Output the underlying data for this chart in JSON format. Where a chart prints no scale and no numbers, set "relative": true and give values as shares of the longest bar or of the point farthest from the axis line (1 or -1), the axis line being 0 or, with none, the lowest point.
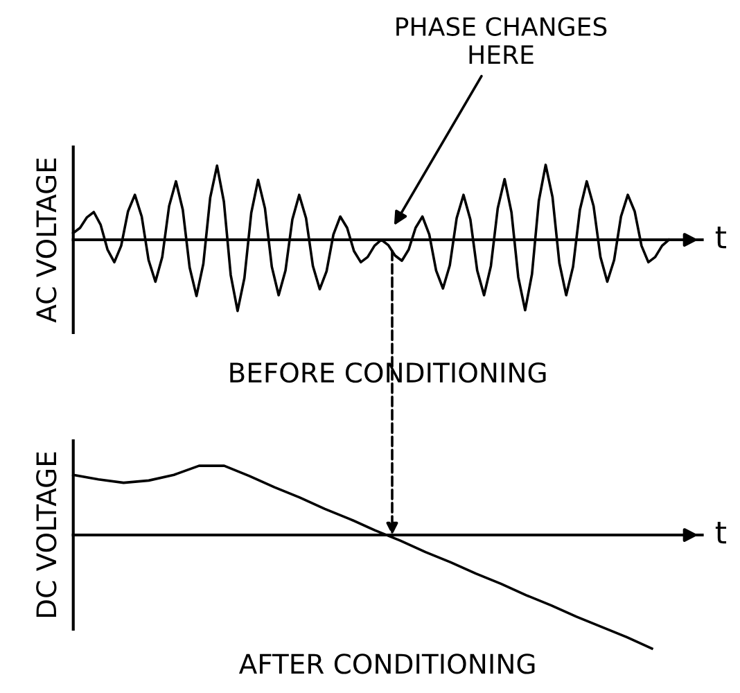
{
  "chart_data": [
    {
      "type": "line",
      "relative": true,
      "title": "BEFORE CONDITIONING",
      "xlabel": "t",
      "ylabel": "AC VOLTAGE",
      "annotations": [
        "PHASE CHANGES\nHERE"
      ],
      "categories": [
        null,
        null,
        null,
        null,
        null,
        null,
        null,
        null,
        null,
        null,
        null,
        null,
        null,
        null,
        null,
        null,
        null,
        null,
        null,
        null,
        null,
        null,
        null,
        null,
        null,
        null,
        null,
        null,
        null,
        null,
        null,
        null,
        null,
        null,
        null,
        null,
        null,
        null,
        null,
        null,
        null,
        null,
        null,
        null,
        null,
        null,
        null,
        null,
        null,
        null,
        null,
        null,
        null,
        null,
        null,
        null,
        null,
        null,
        null,
        null,
        null,
        null,
        null,
        null,
        null,
        null,
        null,
        null,
        null,
        null,
        null,
        null,
        null,
        null,
        null,
        null,
        null,
        null,
        null,
        null,
        null,
        null,
        null,
        null,
        null,
        null,
        null,
        null
      ],
      "series": [
        {
          "color": "#000000",
          "values": [
            0.09,
            0.16,
            0.3,
            0.37,
            0.2,
            -0.13,
            -0.3,
            -0.08,
            0.38,
            0.6,
            0.31,
            -0.27,
            -0.56,
            -0.23,
            0.45,
            0.78,
            0.4,
            -0.37,
            -0.75,
            -0.32,
            0.56,
            0.99,
            0.51,
            -0.47,
            -0.95,
            -0.51,
            0.36,
            0.8,
            0.42,
            -0.36,
            -0.74,
            -0.41,
            0.27,
            0.6,
            0.29,
            -0.35,
            -0.66,
            -0.42,
            0.07,
            0.31,
            0.16,
            -0.15,
            -0.3,
            -0.23,
            -0.08,
            0,
            -0.07,
            -0.21,
            -0.28,
            -0.13,
            0.16,
            0.31,
            0.07,
            -0.41,
            -0.65,
            -0.34,
            0.29,
            0.6,
            0.27,
            -0.41,
            -0.74,
            -0.35,
            0.42,
            0.81,
            0.37,
            -0.5,
            -0.94,
            -0.46,
            0.52,
            1,
            0.57,
            -0.31,
            -0.74,
            -0.36,
            0.4,
            0.78,
            0.45,
            -0.23,
            -0.56,
            -0.27,
            0.31,
            0.6,
            0.38,
            -0.08,
            -0.3,
            -0.23,
            -0.08,
            0
          ]
        }
      ],
      "line_style": "solid",
      "legend": false
    },
    {
      "type": "line",
      "relative": true,
      "title": "AFTER CONDITIONING",
      "xlabel": "t",
      "ylabel": "DC VOLTAGE",
      "categories": [
        null,
        null,
        null,
        null,
        null,
        null,
        null,
        null,
        null,
        null,
        null,
        null,
        null,
        null,
        null,
        null,
        null,
        null,
        null,
        null,
        null,
        null,
        null,
        null
      ],
      "series": [
        {
          "color": "#000000",
          "values": [
            0.53,
            0.49,
            0.46,
            0.48,
            0.53,
            0.61,
            0.61,
            0.52,
            0.42,
            0.33,
            0.23,
            0.14,
            0.04,
            -0.05,
            -0.15,
            -0.24,
            -0.34,
            -0.43,
            -0.53,
            -0.62,
            -0.72,
            -0.81,
            -0.9,
            -1
          ]
        }
      ],
      "line_style": "solid",
      "legend": false
    }
  ]
}
